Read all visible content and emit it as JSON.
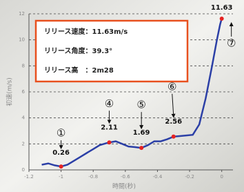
{
  "chart_data": {
    "type": "line",
    "x_label": "時間(秒)",
    "y_label": "初速(m/s)",
    "x": [
      -1.12,
      -1.08,
      -1.04,
      -1.0,
      -0.96,
      -0.92,
      -0.88,
      -0.84,
      -0.8,
      -0.76,
      -0.72,
      -0.7,
      -0.66,
      -0.62,
      -0.58,
      -0.54,
      -0.5,
      -0.46,
      -0.42,
      -0.38,
      -0.34,
      -0.3,
      -0.26,
      -0.22,
      -0.18,
      -0.14,
      -0.1,
      -0.06,
      -0.03,
      -0.01,
      0
    ],
    "values": [
      0.4,
      0.5,
      0.35,
      0.26,
      0.4,
      0.7,
      1.0,
      1.3,
      1.6,
      1.9,
      2.05,
      2.11,
      2.2,
      2.0,
      1.8,
      1.75,
      1.69,
      1.9,
      2.2,
      2.2,
      2.35,
      2.56,
      2.6,
      2.65,
      2.7,
      3.5,
      5.5,
      8.0,
      10.0,
      11.2,
      11.63
    ],
    "color": "#2b3fa6",
    "highlights": {
      "x": [
        -1.0,
        -0.7,
        -0.5,
        -0.3,
        0
      ],
      "values": [
        0.26,
        2.11,
        1.69,
        2.56,
        11.63
      ],
      "markers": [
        "①",
        "④",
        "⑤",
        "⑥",
        "⑦"
      ],
      "color": "#e52222"
    },
    "annotation_box": [
      "リリース速度：11.63m/s",
      "リリース角度：39.3°",
      "リリース高　：2m28"
    ],
    "xlim": [
      -1.2,
      0.07
    ],
    "xticks": [
      -1.2,
      -1,
      -0.8,
      -0.6,
      -0.4,
      -0.2,
      0
    ],
    "ylim": [
      0,
      12
    ],
    "yticks": [
      0,
      2,
      4,
      6,
      8,
      10,
      12
    ],
    "grid": true
  }
}
